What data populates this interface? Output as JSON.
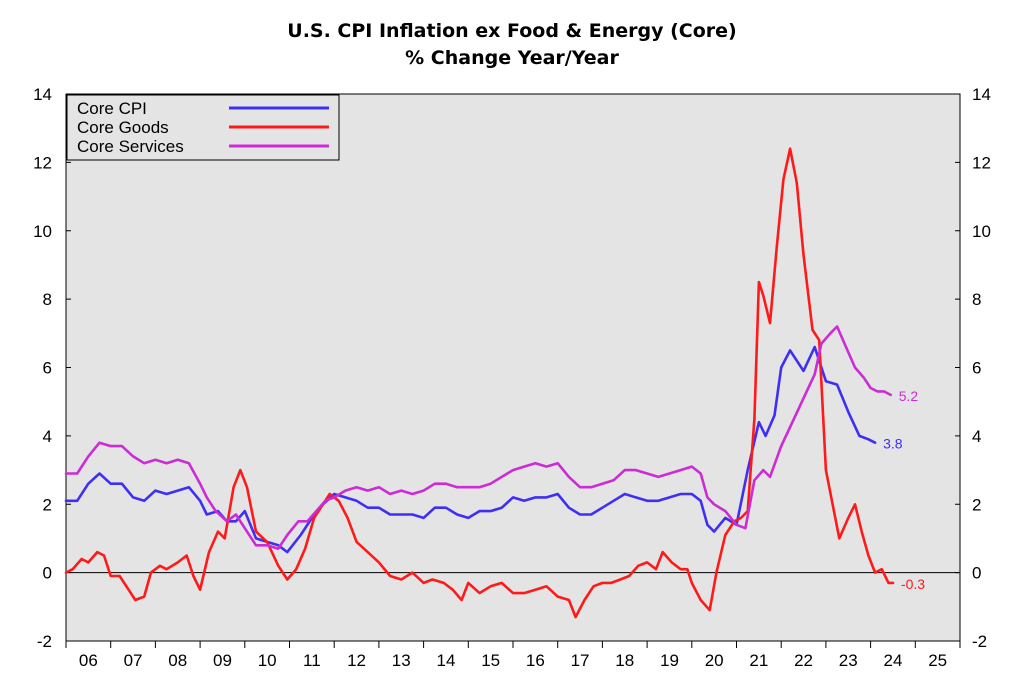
{
  "title": "U.S. CPI Inflation ex Food & Energy (Core)",
  "subtitle": "% Change Year/Year",
  "chart_data": {
    "type": "line",
    "title": "U.S. CPI Inflation ex Food & Energy (Core)",
    "subtitle": "% Change Year/Year",
    "xlabel": "",
    "ylabel": "",
    "xlim": [
      2006.0,
      2026.0
    ],
    "ylim": [
      -2,
      14
    ],
    "y_ticks": [
      -2,
      0,
      2,
      4,
      6,
      8,
      10,
      12,
      14
    ],
    "x_ticks": [
      "06",
      "07",
      "08",
      "09",
      "10",
      "11",
      "12",
      "13",
      "14",
      "15",
      "16",
      "17",
      "18",
      "19",
      "20",
      "21",
      "22",
      "23",
      "24",
      "25"
    ],
    "x_tick_values": [
      2006.5,
      2007.5,
      2008.5,
      2009.5,
      2010.5,
      2011.5,
      2012.5,
      2013.5,
      2014.5,
      2015.5,
      2016.5,
      2017.5,
      2018.5,
      2019.5,
      2020.5,
      2021.5,
      2022.5,
      2023.5,
      2024.5,
      2025.5
    ],
    "zero_line": true,
    "grid": false,
    "legend_position": "top-left",
    "background": "#e4e4e4",
    "series": [
      {
        "name": "Core CPI",
        "color": "#3f2ff5",
        "end_label": "3.8",
        "points": [
          [
            2006.0,
            2.1
          ],
          [
            2006.25,
            2.1
          ],
          [
            2006.5,
            2.6
          ],
          [
            2006.75,
            2.9
          ],
          [
            2007.0,
            2.6
          ],
          [
            2007.25,
            2.6
          ],
          [
            2007.5,
            2.2
          ],
          [
            2007.75,
            2.1
          ],
          [
            2008.0,
            2.4
          ],
          [
            2008.25,
            2.3
          ],
          [
            2008.5,
            2.4
          ],
          [
            2008.75,
            2.5
          ],
          [
            2009.0,
            2.1
          ],
          [
            2009.15,
            1.7
          ],
          [
            2009.4,
            1.8
          ],
          [
            2009.6,
            1.5
          ],
          [
            2009.8,
            1.5
          ],
          [
            2010.0,
            1.8
          ],
          [
            2010.25,
            1.0
          ],
          [
            2010.5,
            0.9
          ],
          [
            2010.75,
            0.8
          ],
          [
            2010.95,
            0.6
          ],
          [
            2011.25,
            1.1
          ],
          [
            2011.5,
            1.6
          ],
          [
            2011.75,
            2.0
          ],
          [
            2012.0,
            2.3
          ],
          [
            2012.25,
            2.2
          ],
          [
            2012.5,
            2.1
          ],
          [
            2012.75,
            1.9
          ],
          [
            2013.0,
            1.9
          ],
          [
            2013.25,
            1.7
          ],
          [
            2013.5,
            1.7
          ],
          [
            2013.75,
            1.7
          ],
          [
            2014.0,
            1.6
          ],
          [
            2014.25,
            1.9
          ],
          [
            2014.5,
            1.9
          ],
          [
            2014.75,
            1.7
          ],
          [
            2015.0,
            1.6
          ],
          [
            2015.25,
            1.8
          ],
          [
            2015.5,
            1.8
          ],
          [
            2015.75,
            1.9
          ],
          [
            2016.0,
            2.2
          ],
          [
            2016.25,
            2.1
          ],
          [
            2016.5,
            2.2
          ],
          [
            2016.75,
            2.2
          ],
          [
            2017.0,
            2.3
          ],
          [
            2017.25,
            1.9
          ],
          [
            2017.5,
            1.7
          ],
          [
            2017.75,
            1.7
          ],
          [
            2018.0,
            1.9
          ],
          [
            2018.25,
            2.1
          ],
          [
            2018.5,
            2.3
          ],
          [
            2018.75,
            2.2
          ],
          [
            2019.0,
            2.1
          ],
          [
            2019.25,
            2.1
          ],
          [
            2019.5,
            2.2
          ],
          [
            2019.75,
            2.3
          ],
          [
            2020.0,
            2.3
          ],
          [
            2020.2,
            2.1
          ],
          [
            2020.35,
            1.4
          ],
          [
            2020.5,
            1.2
          ],
          [
            2020.75,
            1.6
          ],
          [
            2021.0,
            1.4
          ],
          [
            2021.25,
            3.0
          ],
          [
            2021.5,
            4.4
          ],
          [
            2021.65,
            4.0
          ],
          [
            2021.85,
            4.6
          ],
          [
            2022.0,
            6.0
          ],
          [
            2022.2,
            6.5
          ],
          [
            2022.5,
            5.9
          ],
          [
            2022.75,
            6.6
          ],
          [
            2023.0,
            5.6
          ],
          [
            2023.25,
            5.5
          ],
          [
            2023.5,
            4.7
          ],
          [
            2023.75,
            4.0
          ],
          [
            2023.95,
            3.9
          ],
          [
            2024.1,
            3.8
          ]
        ]
      },
      {
        "name": "Core Goods",
        "color": "#ff1a1a",
        "end_label": "-0.3",
        "points": [
          [
            2006.0,
            0.0
          ],
          [
            2006.15,
            0.1
          ],
          [
            2006.35,
            0.4
          ],
          [
            2006.5,
            0.3
          ],
          [
            2006.7,
            0.6
          ],
          [
            2006.85,
            0.5
          ],
          [
            2007.0,
            -0.1
          ],
          [
            2007.2,
            -0.1
          ],
          [
            2007.4,
            -0.5
          ],
          [
            2007.55,
            -0.8
          ],
          [
            2007.75,
            -0.7
          ],
          [
            2007.9,
            0.0
          ],
          [
            2008.1,
            0.2
          ],
          [
            2008.25,
            0.1
          ],
          [
            2008.5,
            0.3
          ],
          [
            2008.7,
            0.5
          ],
          [
            2008.85,
            -0.1
          ],
          [
            2009.0,
            -0.5
          ],
          [
            2009.2,
            0.6
          ],
          [
            2009.4,
            1.2
          ],
          [
            2009.55,
            1.0
          ],
          [
            2009.75,
            2.5
          ],
          [
            2009.9,
            3.0
          ],
          [
            2010.05,
            2.5
          ],
          [
            2010.25,
            1.2
          ],
          [
            2010.5,
            0.9
          ],
          [
            2010.75,
            0.2
          ],
          [
            2010.95,
            -0.2
          ],
          [
            2011.15,
            0.1
          ],
          [
            2011.35,
            0.7
          ],
          [
            2011.55,
            1.6
          ],
          [
            2011.75,
            2.0
          ],
          [
            2011.9,
            2.3
          ],
          [
            2012.1,
            2.1
          ],
          [
            2012.3,
            1.6
          ],
          [
            2012.5,
            0.9
          ],
          [
            2012.75,
            0.6
          ],
          [
            2013.0,
            0.3
          ],
          [
            2013.25,
            -0.1
          ],
          [
            2013.5,
            -0.2
          ],
          [
            2013.75,
            0.0
          ],
          [
            2014.0,
            -0.3
          ],
          [
            2014.2,
            -0.2
          ],
          [
            2014.45,
            -0.3
          ],
          [
            2014.65,
            -0.5
          ],
          [
            2014.85,
            -0.8
          ],
          [
            2015.0,
            -0.3
          ],
          [
            2015.25,
            -0.6
          ],
          [
            2015.5,
            -0.4
          ],
          [
            2015.75,
            -0.3
          ],
          [
            2016.0,
            -0.6
          ],
          [
            2016.25,
            -0.6
          ],
          [
            2016.5,
            -0.5
          ],
          [
            2016.75,
            -0.4
          ],
          [
            2017.0,
            -0.7
          ],
          [
            2017.25,
            -0.8
          ],
          [
            2017.4,
            -1.3
          ],
          [
            2017.6,
            -0.8
          ],
          [
            2017.8,
            -0.4
          ],
          [
            2018.0,
            -0.3
          ],
          [
            2018.2,
            -0.3
          ],
          [
            2018.4,
            -0.2
          ],
          [
            2018.6,
            -0.1
          ],
          [
            2018.8,
            0.2
          ],
          [
            2019.0,
            0.3
          ],
          [
            2019.2,
            0.1
          ],
          [
            2019.35,
            0.6
          ],
          [
            2019.55,
            0.3
          ],
          [
            2019.75,
            0.1
          ],
          [
            2019.9,
            0.1
          ],
          [
            2020.0,
            -0.3
          ],
          [
            2020.2,
            -0.8
          ],
          [
            2020.4,
            -1.1
          ],
          [
            2020.55,
            0.0
          ],
          [
            2020.75,
            1.1
          ],
          [
            2020.95,
            1.5
          ],
          [
            2021.1,
            1.6
          ],
          [
            2021.25,
            1.8
          ],
          [
            2021.4,
            4.5
          ],
          [
            2021.5,
            8.5
          ],
          [
            2021.6,
            8.1
          ],
          [
            2021.75,
            7.3
          ],
          [
            2021.9,
            9.5
          ],
          [
            2022.05,
            11.5
          ],
          [
            2022.2,
            12.4
          ],
          [
            2022.35,
            11.4
          ],
          [
            2022.5,
            9.3
          ],
          [
            2022.7,
            7.1
          ],
          [
            2022.85,
            6.8
          ],
          [
            2023.0,
            3.0
          ],
          [
            2023.15,
            2.0
          ],
          [
            2023.3,
            1.0
          ],
          [
            2023.5,
            1.6
          ],
          [
            2023.65,
            2.0
          ],
          [
            2023.8,
            1.2
          ],
          [
            2023.95,
            0.5
          ],
          [
            2024.1,
            0.0
          ],
          [
            2024.25,
            0.1
          ],
          [
            2024.4,
            -0.3
          ],
          [
            2024.5,
            -0.3
          ]
        ]
      },
      {
        "name": "Core Services",
        "color": "#cc2bd6",
        "end_label": "5.2",
        "points": [
          [
            2006.0,
            2.9
          ],
          [
            2006.25,
            2.9
          ],
          [
            2006.5,
            3.4
          ],
          [
            2006.75,
            3.8
          ],
          [
            2007.0,
            3.7
          ],
          [
            2007.25,
            3.7
          ],
          [
            2007.5,
            3.4
          ],
          [
            2007.75,
            3.2
          ],
          [
            2008.0,
            3.3
          ],
          [
            2008.25,
            3.2
          ],
          [
            2008.5,
            3.3
          ],
          [
            2008.75,
            3.2
          ],
          [
            2009.0,
            2.6
          ],
          [
            2009.15,
            2.2
          ],
          [
            2009.35,
            1.8
          ],
          [
            2009.6,
            1.5
          ],
          [
            2009.8,
            1.7
          ],
          [
            2010.0,
            1.3
          ],
          [
            2010.25,
            0.8
          ],
          [
            2010.5,
            0.8
          ],
          [
            2010.75,
            0.7
          ],
          [
            2010.95,
            1.1
          ],
          [
            2011.2,
            1.5
          ],
          [
            2011.4,
            1.5
          ],
          [
            2011.6,
            1.8
          ],
          [
            2011.8,
            2.1
          ],
          [
            2012.0,
            2.2
          ],
          [
            2012.25,
            2.4
          ],
          [
            2012.5,
            2.5
          ],
          [
            2012.75,
            2.4
          ],
          [
            2013.0,
            2.5
          ],
          [
            2013.25,
            2.3
          ],
          [
            2013.5,
            2.4
          ],
          [
            2013.75,
            2.3
          ],
          [
            2014.0,
            2.4
          ],
          [
            2014.25,
            2.6
          ],
          [
            2014.5,
            2.6
          ],
          [
            2014.75,
            2.5
          ],
          [
            2015.0,
            2.5
          ],
          [
            2015.25,
            2.5
          ],
          [
            2015.5,
            2.6
          ],
          [
            2015.75,
            2.8
          ],
          [
            2016.0,
            3.0
          ],
          [
            2016.25,
            3.1
          ],
          [
            2016.5,
            3.2
          ],
          [
            2016.75,
            3.1
          ],
          [
            2017.0,
            3.2
          ],
          [
            2017.25,
            2.8
          ],
          [
            2017.5,
            2.5
          ],
          [
            2017.75,
            2.5
          ],
          [
            2018.0,
            2.6
          ],
          [
            2018.25,
            2.7
          ],
          [
            2018.5,
            3.0
          ],
          [
            2018.75,
            3.0
          ],
          [
            2019.0,
            2.9
          ],
          [
            2019.25,
            2.8
          ],
          [
            2019.5,
            2.9
          ],
          [
            2019.75,
            3.0
          ],
          [
            2020.0,
            3.1
          ],
          [
            2020.2,
            2.9
          ],
          [
            2020.35,
            2.2
          ],
          [
            2020.5,
            2.0
          ],
          [
            2020.75,
            1.8
          ],
          [
            2021.0,
            1.4
          ],
          [
            2021.2,
            1.3
          ],
          [
            2021.4,
            2.7
          ],
          [
            2021.6,
            3.0
          ],
          [
            2021.75,
            2.8
          ],
          [
            2022.0,
            3.7
          ],
          [
            2022.25,
            4.4
          ],
          [
            2022.5,
            5.1
          ],
          [
            2022.75,
            5.8
          ],
          [
            2022.9,
            6.7
          ],
          [
            2023.1,
            7.0
          ],
          [
            2023.25,
            7.2
          ],
          [
            2023.45,
            6.6
          ],
          [
            2023.65,
            6.0
          ],
          [
            2023.85,
            5.7
          ],
          [
            2024.0,
            5.4
          ],
          [
            2024.15,
            5.3
          ],
          [
            2024.3,
            5.3
          ],
          [
            2024.45,
            5.2
          ]
        ]
      }
    ]
  }
}
